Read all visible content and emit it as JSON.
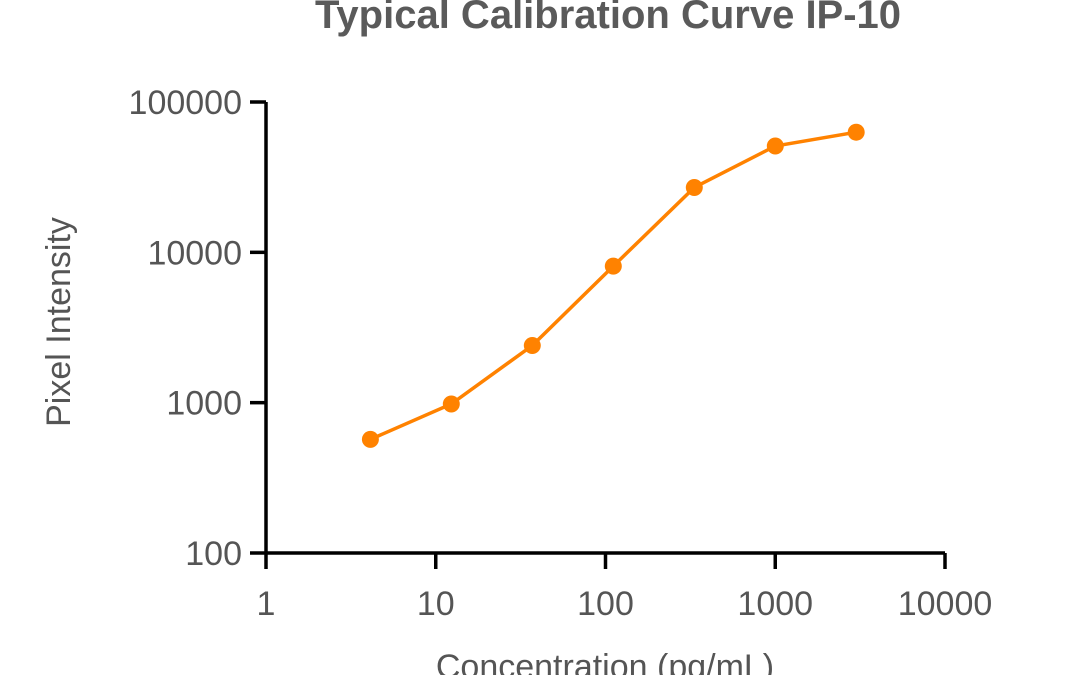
{
  "chart_data": {
    "type": "line",
    "title": "Typical Calibration Curve IP-10",
    "xlabel": "Concentration (pg/mL)",
    "ylabel": "Pixel Intensity",
    "x_scale": "log",
    "y_scale": "log",
    "xlim": [
      1,
      10000
    ],
    "ylim": [
      100,
      100000
    ],
    "x_ticks": [
      "1",
      "10",
      "100",
      "1000",
      "10000"
    ],
    "y_ticks": [
      "100",
      "1000",
      "10000",
      "100000"
    ],
    "grid": false,
    "legend": "none",
    "series": [
      {
        "color": "#ff8200",
        "x": [
          4.12,
          12.35,
          37.04,
          111.1,
          333.3,
          1000,
          3000
        ],
        "y": [
          570,
          980,
          2400,
          8100,
          27000,
          51000,
          63000
        ]
      }
    ]
  }
}
